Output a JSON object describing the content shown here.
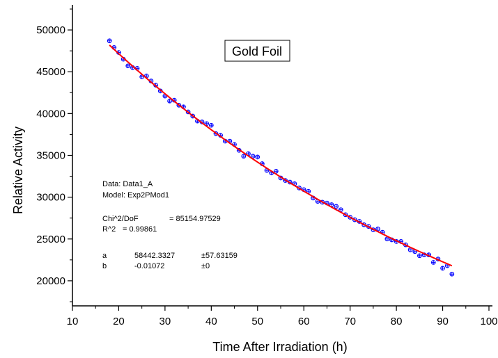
{
  "chart_data": {
    "type": "scatter",
    "title": "Gold Foil",
    "xlabel": "Time After Irradiation (h)",
    "ylabel": "Relative Activity",
    "xlim": [
      10,
      100
    ],
    "ylim": [
      17000,
      53000
    ],
    "xticks": [
      10,
      20,
      30,
      40,
      50,
      60,
      70,
      80,
      90,
      100
    ],
    "yticks": [
      20000,
      25000,
      30000,
      35000,
      40000,
      45000,
      50000
    ],
    "grid": false,
    "legend": "top-center",
    "colors": {
      "points": "#0000ff",
      "fit": "#ff0000",
      "axis": "#000000"
    },
    "series": [
      {
        "kind": "scatter",
        "marker": "circled-plus",
        "x": [
          18,
          19,
          20,
          21,
          22,
          23,
          24,
          25,
          26,
          27,
          28,
          29,
          30,
          31,
          32,
          33,
          34,
          35,
          36,
          37,
          38,
          39,
          40,
          41,
          42,
          43,
          44,
          45,
          46,
          47,
          48,
          49,
          50,
          51,
          52,
          53,
          54,
          55,
          56,
          57,
          58,
          59,
          60,
          61,
          62,
          63,
          64,
          65,
          66,
          67,
          68,
          69,
          70,
          71,
          72,
          73,
          74,
          75,
          76,
          77,
          78,
          79,
          80,
          81,
          82,
          83,
          84,
          85,
          86,
          87,
          88,
          89,
          90,
          91,
          92
        ],
        "y": [
          48700,
          47900,
          47300,
          46500,
          45700,
          45500,
          45400,
          44400,
          44500,
          43900,
          43400,
          42700,
          42100,
          41500,
          41600,
          41000,
          40800,
          40200,
          39700,
          39100,
          39000,
          38800,
          38600,
          37600,
          37400,
          36700,
          36700,
          36300,
          35600,
          34900,
          35200,
          34900,
          34800,
          34000,
          33200,
          32900,
          33100,
          32300,
          32000,
          31800,
          31600,
          31100,
          30900,
          30700,
          29900,
          29500,
          29400,
          29300,
          29100,
          28900,
          28500,
          27900,
          27600,
          27300,
          27100,
          26700,
          26500,
          26100,
          26200,
          25800,
          25000,
          24900,
          24700,
          24700,
          24300,
          23700,
          23500,
          23000,
          23100,
          23100,
          22200,
          22600,
          21500,
          21800,
          20800
        ]
      },
      {
        "kind": "line",
        "model": "a*exp(b*x)",
        "a": 58442.3327,
        "b": -0.01072,
        "x_start": 18,
        "x_end": 92
      }
    ],
    "fit_box": {
      "data_line": "Data: Data1_A",
      "model_line": "Model: Exp2PMod1",
      "chi_label": "Chi^2/DoF",
      "chi_value": "= 85154.97529",
      "r2_label": "R^2",
      "r2_value": "=  0.99861",
      "params": [
        {
          "name": "a",
          "value": "58442.3327",
          "error": "±57.63159"
        },
        {
          "name": "b",
          "value": "-0.01072",
          "error": "±0"
        }
      ]
    }
  }
}
